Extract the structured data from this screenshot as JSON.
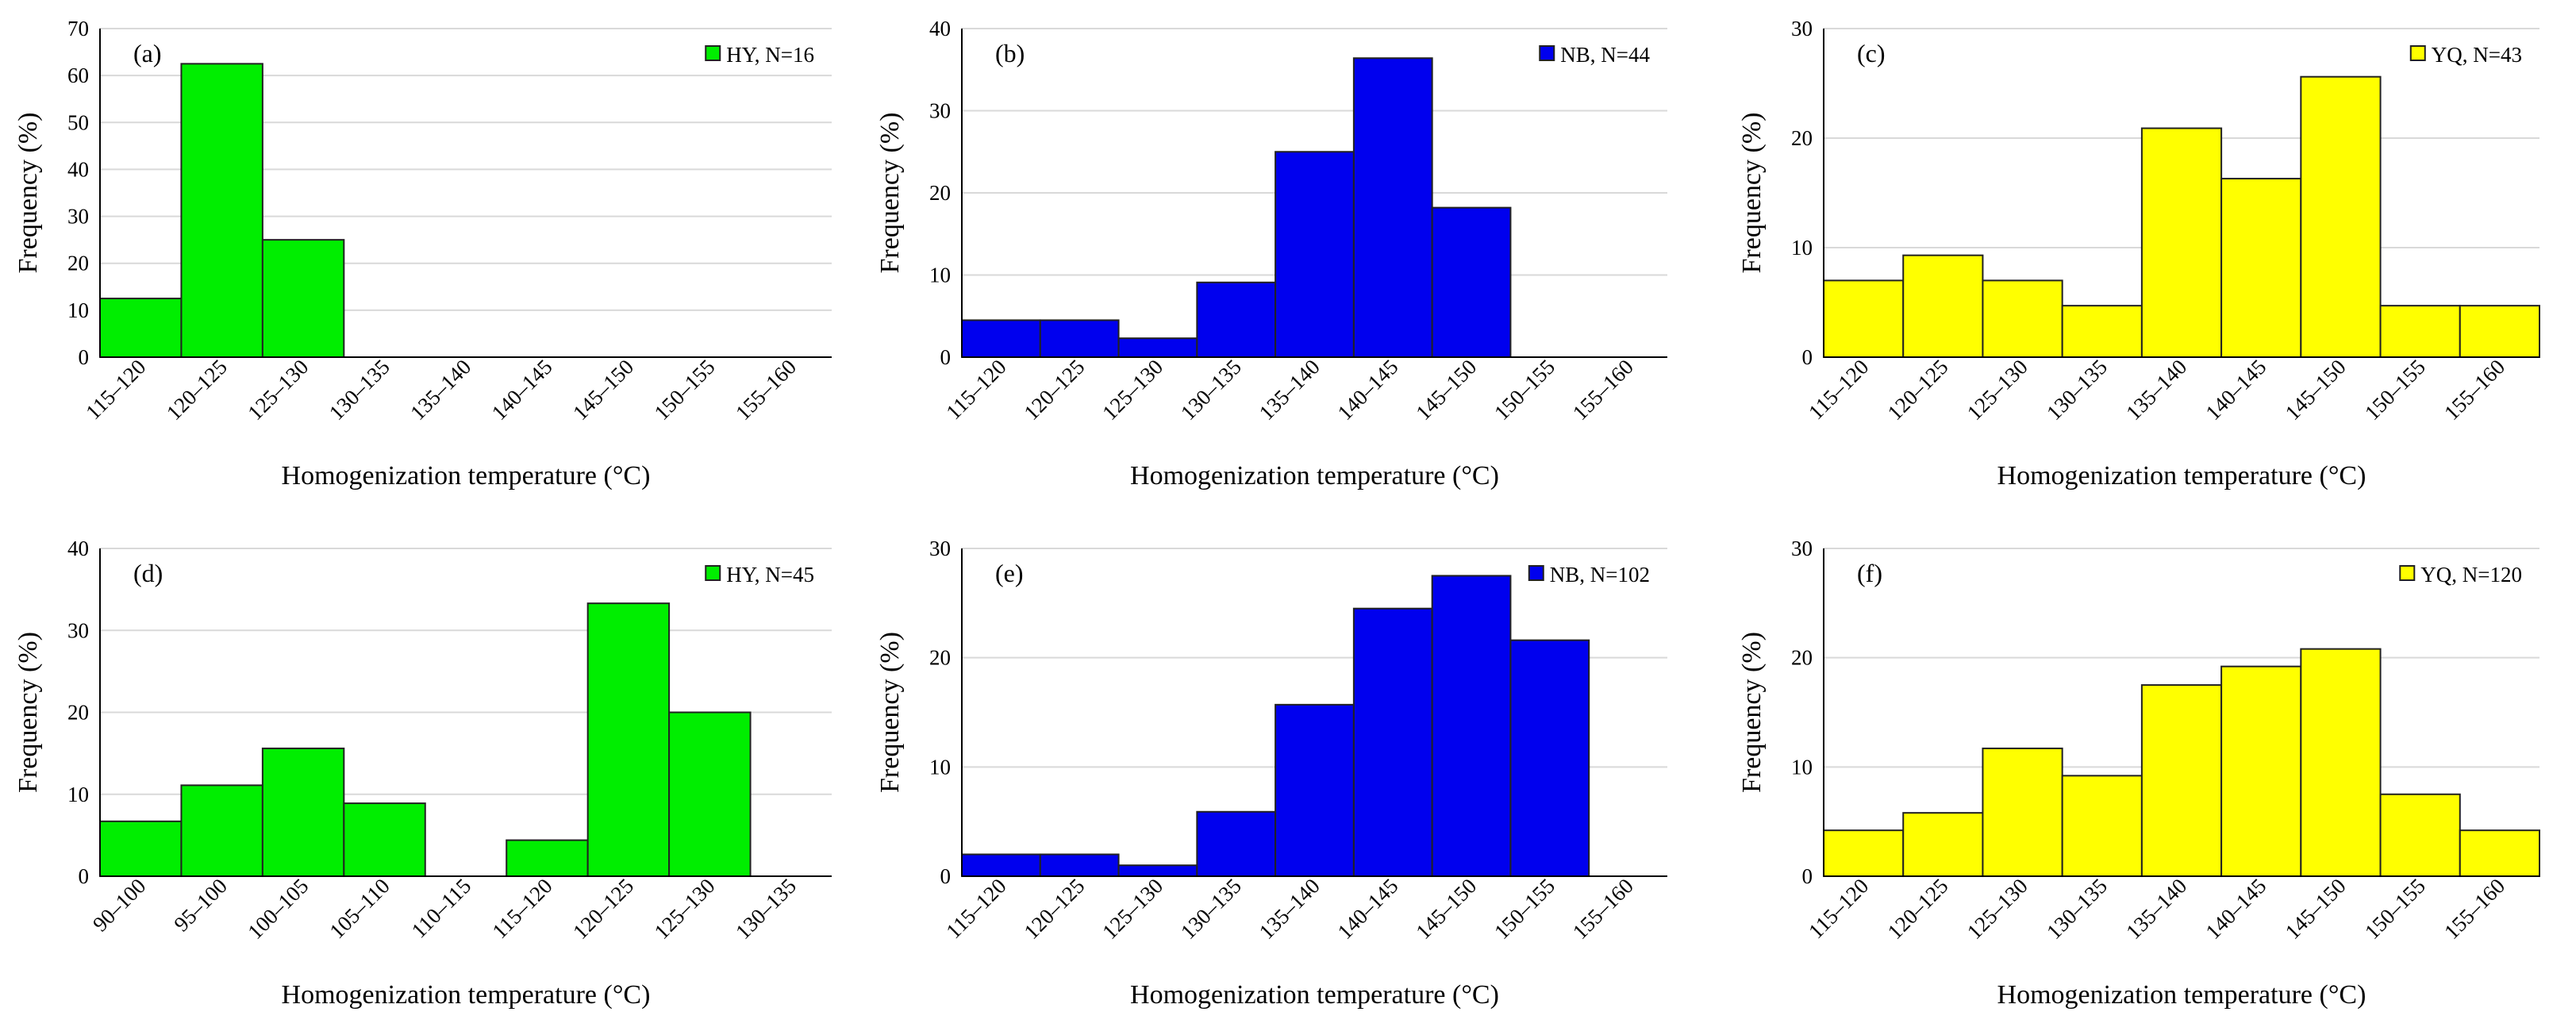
{
  "chart_data": [
    {
      "type": "bar",
      "panel_label": "(a)",
      "legend": "HY, N=16",
      "color": "#00ee00",
      "categories": [
        "115–120",
        "120–125",
        "125–130",
        "130–135",
        "135–140",
        "140–145",
        "145–150",
        "150–155",
        "155–160"
      ],
      "values": [
        12.5,
        62.5,
        25,
        0,
        0,
        0,
        0,
        0,
        0
      ],
      "yticks": [
        "0",
        "10",
        "20",
        "30",
        "40",
        "50",
        "60",
        "70"
      ],
      "ylim": [
        0,
        70
      ],
      "xlabel": "Homogenization temperature (°C)",
      "ylabel": "Frequency (%)",
      "grid": true,
      "legend_position": "top-right"
    },
    {
      "type": "bar",
      "panel_label": "(b)",
      "legend": "NB, N=44",
      "color": "#0000ee",
      "categories": [
        "115–120",
        "120–125",
        "125–130",
        "130–135",
        "135–140",
        "140–145",
        "145–150",
        "150–155",
        "155–160"
      ],
      "values": [
        4.5,
        4.5,
        2.3,
        9.1,
        25,
        36.4,
        18.2,
        0,
        0
      ],
      "yticks": [
        "0",
        "10",
        "20",
        "30",
        "40"
      ],
      "ylim": [
        0,
        40
      ],
      "xlabel": "Homogenization temperature (°C)",
      "ylabel": "Frequency (%)",
      "grid": true,
      "legend_position": "top-right"
    },
    {
      "type": "bar",
      "panel_label": "(c)",
      "legend": "YQ, N=43",
      "color": "#ffff00",
      "categories": [
        "115–120",
        "120–125",
        "125–130",
        "130–135",
        "135–140",
        "140–145",
        "145–150",
        "150–155",
        "155–160"
      ],
      "values": [
        7,
        9.3,
        7,
        4.7,
        20.9,
        16.3,
        25.6,
        4.7,
        4.7
      ],
      "yticks": [
        "0",
        "10",
        "20",
        "30"
      ],
      "ylim": [
        0,
        30
      ],
      "xlabel": "Homogenization temperature (°C)",
      "ylabel": "Frequency (%)",
      "grid": true,
      "legend_position": "top-right"
    },
    {
      "type": "bar",
      "panel_label": "(d)",
      "legend": "HY, N=45",
      "color": "#00ee00",
      "categories": [
        "90–100",
        "95–100",
        "100–105",
        "105–110",
        "110–115",
        "115–120",
        "120–125",
        "125–130",
        "130–135"
      ],
      "values": [
        6.7,
        11.1,
        15.6,
        8.9,
        0,
        4.4,
        33.3,
        20,
        0
      ],
      "yticks": [
        "0",
        "10",
        "20",
        "30",
        "40"
      ],
      "ylim": [
        0,
        40
      ],
      "xlabel": "Homogenization temperature (°C)",
      "ylabel": "Frequency (%)",
      "grid": true,
      "legend_position": "top-right"
    },
    {
      "type": "bar",
      "panel_label": "(e)",
      "legend": "NB, N=102",
      "color": "#0000ee",
      "categories": [
        "115–120",
        "120–125",
        "125–130",
        "130–135",
        "135–140",
        "140–145",
        "145–150",
        "150–155",
        "155–160"
      ],
      "values": [
        2,
        2,
        1,
        5.9,
        15.7,
        24.5,
        27.5,
        21.6,
        0
      ],
      "yticks": [
        "0",
        "10",
        "20",
        "30"
      ],
      "ylim": [
        0,
        30
      ],
      "xlabel": "Homogenization temperature (°C)",
      "ylabel": "Frequency (%)",
      "grid": true,
      "legend_position": "top-right"
    },
    {
      "type": "bar",
      "panel_label": "(f)",
      "legend": "YQ, N=120",
      "color": "#ffff00",
      "categories": [
        "115–120",
        "120–125",
        "125–130",
        "130–135",
        "135–140",
        "140–145",
        "145–150",
        "150–155",
        "155–160"
      ],
      "values": [
        4.2,
        5.8,
        11.7,
        9.2,
        17.5,
        19.2,
        20.8,
        7.5,
        4.2
      ],
      "yticks": [
        "0",
        "10",
        "20",
        "30"
      ],
      "ylim": [
        0,
        30
      ],
      "xlabel": "Homogenization temperature (°C)",
      "ylabel": "Frequency (%)",
      "grid": true,
      "legend_position": "top-right"
    }
  ]
}
